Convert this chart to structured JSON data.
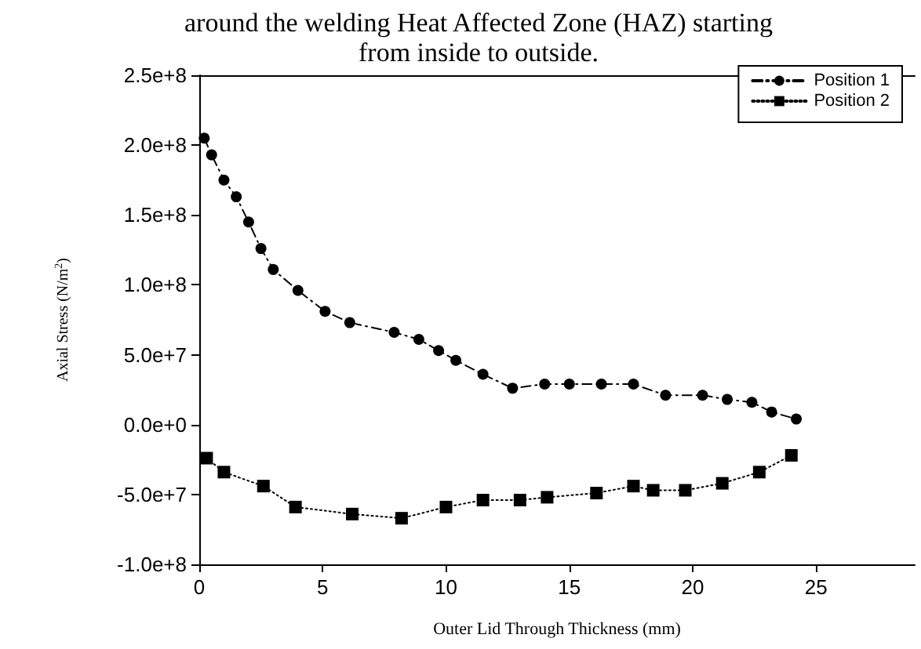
{
  "chart_data": {
    "type": "line",
    "title": "around the welding Heat Affected Zone (HAZ) starting\nfrom inside to outside.",
    "xlabel": "Outer Lid Through Thickness (mm)",
    "ylabel": "Axial Stress (N/m$^{2}$)",
    "xlim": [
      0,
      29
    ],
    "xticks": [
      0,
      5,
      10,
      15,
      20,
      25
    ],
    "ylim": [
      -100000000,
      250000000
    ],
    "yticks": [
      {
        "value": -100000000,
        "label": "-1.0e+8"
      },
      {
        "value": -50000000,
        "label": "-5.0e+7"
      },
      {
        "value": 0,
        "label": "0.0e+0"
      },
      {
        "value": 50000000,
        "label": "5.0e+7"
      },
      {
        "value": 100000000,
        "label": "1.0e+8"
      },
      {
        "value": 150000000,
        "label": "1.5e+8"
      },
      {
        "value": 200000000,
        "label": "2.0e+8"
      },
      {
        "value": 250000000,
        "label": "2.5e+8"
      }
    ],
    "grid": false,
    "legend": "top right",
    "series": [
      {
        "name": "Position 1",
        "color": "#000000",
        "marker": "circle",
        "line_style": "dashed",
        "x": [
          0.2,
          0.5,
          1.0,
          1.5,
          2.0,
          2.5,
          3.0,
          4.0,
          5.1,
          6.1,
          7.9,
          8.9,
          9.7,
          10.4,
          11.5,
          12.7,
          14.0,
          15.0,
          16.3,
          17.6,
          18.9,
          20.4,
          21.4,
          22.4,
          23.2,
          24.2
        ],
        "values": [
          205000000,
          193000000,
          175000000,
          163000000,
          145000000,
          126000000,
          111000000,
          96000000,
          81000000,
          73000000,
          66000000,
          61000000,
          53000000,
          46000000,
          36000000,
          26000000,
          29000000,
          29000000,
          29000000,
          29000000,
          21000000,
          21000000,
          18000000,
          16000000,
          9000000,
          4000000
        ]
      },
      {
        "name": "Position 2",
        "color": "#000000",
        "marker": "square",
        "line_style": "dotted",
        "x": [
          0.3,
          1.0,
          2.6,
          3.9,
          6.2,
          8.2,
          10.0,
          11.5,
          13.0,
          14.1,
          16.1,
          17.6,
          18.4,
          19.7,
          21.2,
          22.7,
          24.0
        ],
        "values": [
          -24000000,
          -34000000,
          -44000000,
          -59000000,
          -64000000,
          -67000000,
          -59000000,
          -54000000,
          -54000000,
          -52000000,
          -49000000,
          -44000000,
          -47000000,
          -47000000,
          -42000000,
          -34000000,
          -22000000
        ]
      }
    ]
  }
}
